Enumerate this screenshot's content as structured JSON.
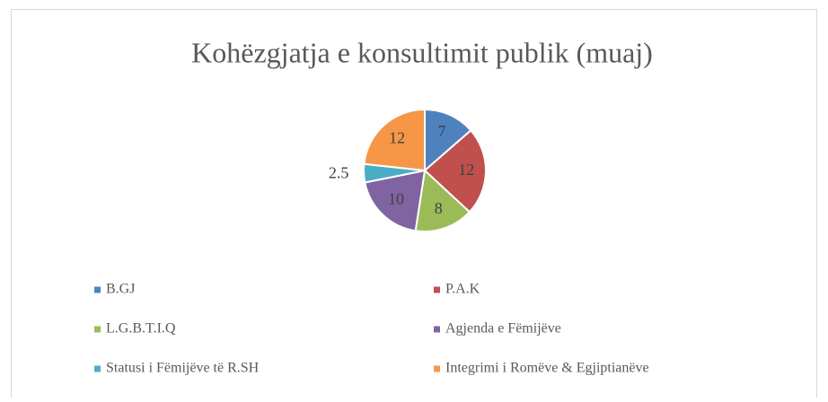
{
  "chart_data": {
    "type": "pie",
    "title": "Kohëzgjatja e konsultimit publik (muaj)",
    "categories": [
      "B.GJ",
      "P.A.K",
      "L.G.B.T.I.Q",
      "Agjenda e Fëmijëve",
      "Statusi i Fëmijëve të R.SH",
      "Integrimi i Romëve & Egjiptianëve"
    ],
    "values": [
      7,
      12,
      8,
      10,
      2.5,
      12
    ],
    "colors": [
      "#4f81bd",
      "#c0504d",
      "#9bbb59",
      "#8064a2",
      "#4bacc6",
      "#f79646"
    ],
    "legend": "bottom"
  }
}
